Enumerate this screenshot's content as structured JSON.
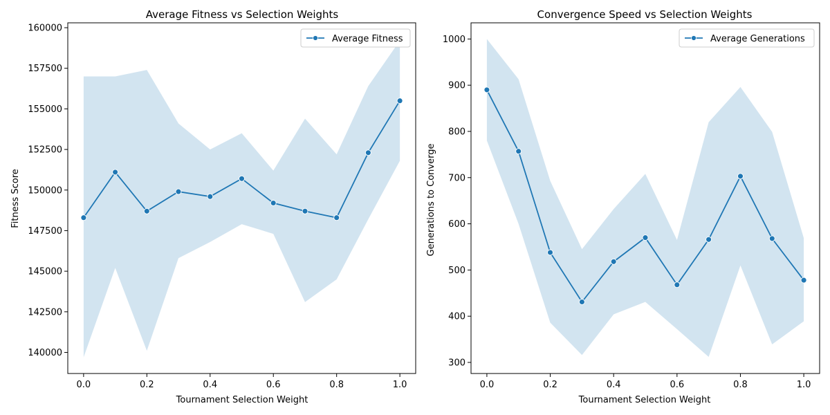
{
  "colors": {
    "line": "#1f77b4",
    "band": "#1f77b4"
  },
  "chart_data": [
    {
      "type": "line",
      "title": "Average Fitness vs Selection Weights",
      "xlabel": "Tournament Selection Weight",
      "ylabel": "Fitness Score",
      "xlim": [
        -0.05,
        1.05
      ],
      "ylim": [
        138700,
        160300
      ],
      "grid": false,
      "legend_position": "top-right",
      "x_ticks": [
        "0.0",
        "0.2",
        "0.4",
        "0.6",
        "0.8",
        "1.0"
      ],
      "x_tick_values": [
        0.0,
        0.2,
        0.4,
        0.6,
        0.8,
        1.0
      ],
      "y_ticks": [
        "140000",
        "142500",
        "145000",
        "147500",
        "150000",
        "152500",
        "155000",
        "157500",
        "160000"
      ],
      "y_tick_values": [
        140000,
        142500,
        145000,
        147500,
        150000,
        152500,
        155000,
        157500,
        160000
      ],
      "series": [
        {
          "name": "Average Fitness",
          "x": [
            0.0,
            0.1,
            0.2,
            0.3,
            0.4,
            0.5,
            0.6,
            0.7,
            0.8,
            0.9,
            1.0
          ],
          "values": [
            148300,
            151100,
            148700,
            149900,
            149600,
            150700,
            149200,
            148700,
            148300,
            152300,
            155500
          ],
          "band_upper": [
            157000,
            157000,
            157400,
            154100,
            152500,
            153500,
            151200,
            154400,
            152200,
            156400,
            159200
          ],
          "band_lower": [
            139700,
            145200,
            140100,
            145800,
            146800,
            147900,
            147300,
            143100,
            144500,
            148200,
            151800
          ]
        }
      ]
    },
    {
      "type": "line",
      "title": "Convergence Speed vs Selection Weights",
      "xlabel": "Tournament Selection Weight",
      "ylabel": "Generations to Converge",
      "xlim": [
        -0.05,
        1.05
      ],
      "ylim": [
        276,
        1035
      ],
      "grid": false,
      "legend_position": "top-right",
      "x_ticks": [
        "0.0",
        "0.2",
        "0.4",
        "0.6",
        "0.8",
        "1.0"
      ],
      "x_tick_values": [
        0.0,
        0.2,
        0.4,
        0.6,
        0.8,
        1.0
      ],
      "y_ticks": [
        "300",
        "400",
        "500",
        "600",
        "700",
        "800",
        "900",
        "1000"
      ],
      "y_tick_values": [
        300,
        400,
        500,
        600,
        700,
        800,
        900,
        1000
      ],
      "series": [
        {
          "name": "Average Generations",
          "x": [
            0.0,
            0.1,
            0.2,
            0.3,
            0.4,
            0.5,
            0.6,
            0.7,
            0.8,
            0.9,
            1.0
          ],
          "values": [
            890,
            757,
            538,
            431,
            518,
            570,
            468,
            566,
            703,
            568,
            478
          ],
          "band_upper": [
            1000,
            913,
            693,
            545,
            632,
            708,
            565,
            820,
            896,
            799,
            569
          ],
          "band_lower": [
            780,
            600,
            386,
            316,
            404,
            431,
            372,
            312,
            510,
            339,
            389
          ]
        }
      ]
    }
  ]
}
